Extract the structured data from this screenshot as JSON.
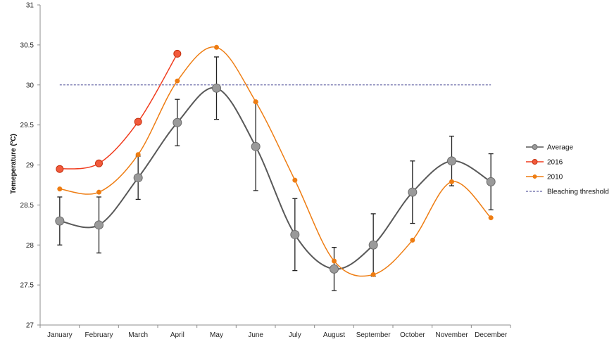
{
  "chart_data": {
    "type": "line",
    "title": "",
    "xlabel": "",
    "ylabel": "Temeperature (ºC)",
    "categories": [
      "January",
      "February",
      "March",
      "April",
      "May",
      "June",
      "July",
      "August",
      "September",
      "October",
      "November",
      "December"
    ],
    "ylim": [
      27,
      31
    ],
    "yticks": [
      "27",
      "27.5",
      "28",
      "28.5",
      "29",
      "29.5",
      "30",
      "30.5",
      "31"
    ],
    "grid": false,
    "legend_position": "right",
    "series": [
      {
        "name": "Average",
        "color": "#595959",
        "marker": "circle-large",
        "values": [
          28.3,
          28.25,
          28.84,
          29.53,
          29.96,
          29.23,
          28.13,
          27.7,
          28.0,
          28.66,
          29.05,
          28.79
        ],
        "error": [
          0.3,
          0.35,
          0.27,
          0.29,
          0.39,
          0.55,
          0.45,
          0.27,
          0.39,
          0.39,
          0.31,
          0.35
        ]
      },
      {
        "name": "2016",
        "color": "#f03c1e",
        "marker": "circle-medium",
        "values": [
          28.95,
          29.02,
          29.54,
          30.39,
          null,
          null,
          null,
          null,
          null,
          null,
          null,
          null
        ]
      },
      {
        "name": "2010",
        "color": "#ee7d13",
        "marker": "circle-small",
        "values": [
          28.7,
          28.66,
          29.13,
          30.05,
          30.47,
          29.79,
          28.81,
          27.8,
          27.63,
          28.06,
          28.79,
          28.34
        ]
      },
      {
        "name": "Bleaching threshold",
        "color": "#3a3a8c",
        "style": "dashed",
        "value": 30.0
      }
    ]
  }
}
